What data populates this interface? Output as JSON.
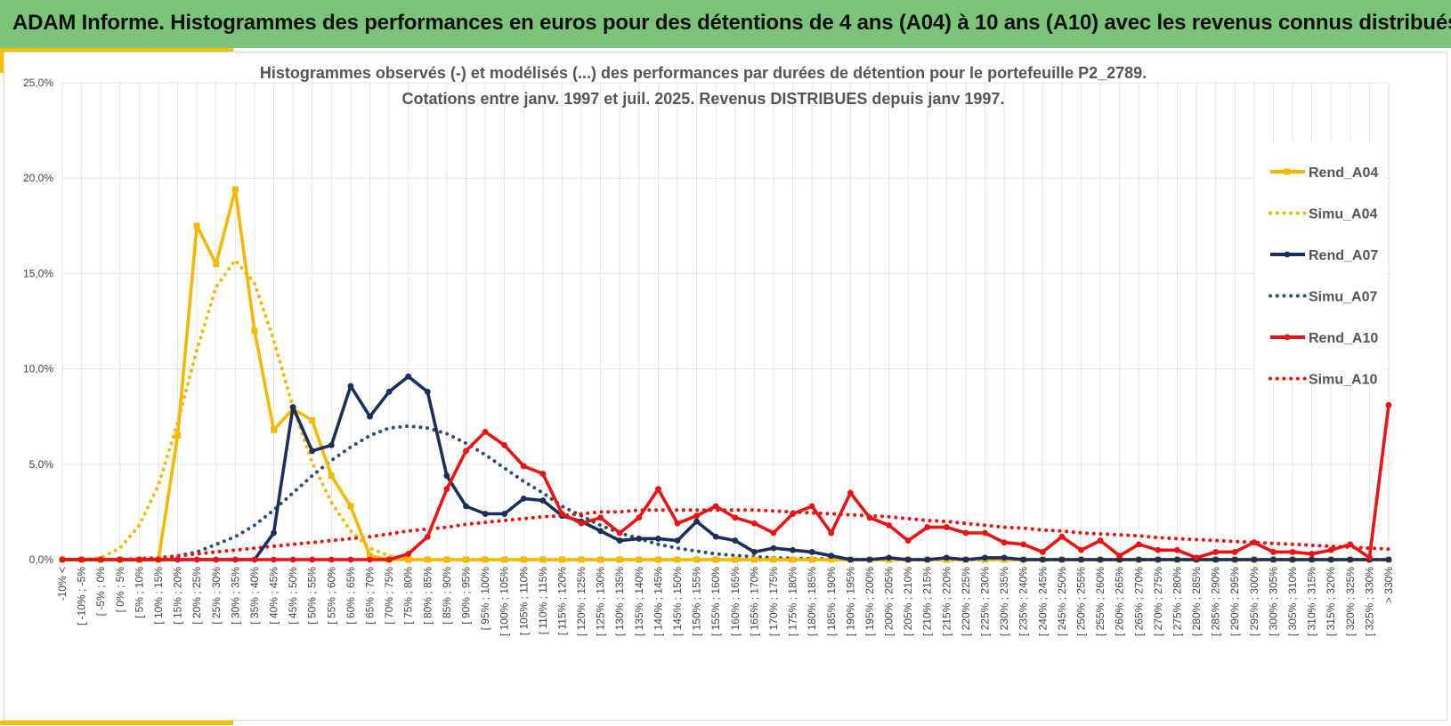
{
  "header": {
    "title": "ADAM Informe. Histogrammes des performances en euros pour des détentions de 4 ans (A04) à 10 ans (A10) avec les revenus connus distribués"
  },
  "colors": {
    "header_bg": "#7cc47a",
    "accent": "#f2c200",
    "a04": "#f5b800",
    "a07": "#1b2f5c",
    "a10": "#ee1111",
    "sim_a07": "#2f4f6f",
    "grid": "#e3e3e3",
    "axis_text": "#444444"
  },
  "chart_data": {
    "type": "line",
    "title_lines": [
      "Histogrammes observés (-) et modélisés (...) des performances par durées de détention pour le portefeuille P2_2789.",
      "Cotations entre janv. 1997 et juil. 2025. Revenus DISTRIBUES depuis janv 1997."
    ],
    "y_ticks": [
      "0,0%",
      "5,0%",
      "10,0%",
      "15,0%",
      "20,0%",
      "25,0%"
    ],
    "ylim": [
      0,
      25
    ],
    "y_unit": "%",
    "grid": true,
    "legend_position": "right",
    "categories": [
      "-10% <",
      "[ -10% ; -5%",
      "[ -5% ; 0%",
      "[ 0% ; 5%",
      "[ 5% ; 10%",
      "[ 10% ; 15%",
      "[ 15% ; 20%",
      "[ 20% ; 25%",
      "[ 25% ; 30%",
      "[ 30% ; 35%",
      "[ 35% ; 40%",
      "[ 40% ; 45%",
      "[ 45% ; 50%",
      "[ 50% ; 55%",
      "[ 55% ; 60%",
      "[ 60% ; 65%",
      "[ 65% ; 70%",
      "[ 70% ; 75%",
      "[ 75% ; 80%",
      "[ 80% ; 85%",
      "[ 85% ; 90%",
      "[ 90% ; 95%",
      "[ 95% ; 100%",
      "[ 100% ; 105%",
      "[ 105% ; 110%",
      "[ 110% ; 115%",
      "[ 115% ; 120%",
      "[ 120% ; 125%",
      "[ 125% ; 130%",
      "[ 130% ; 135%",
      "[ 135% ; 140%",
      "[ 140% ; 145%",
      "[ 145% ; 150%",
      "[ 150% ; 155%",
      "[ 155% ; 160%",
      "[ 160% ; 165%",
      "[ 165% ; 170%",
      "[ 170% ; 175%",
      "[ 175% ; 180%",
      "[ 180% ; 185%",
      "[ 185% ; 190%",
      "[ 190% ; 195%",
      "[ 195% ; 200%",
      "[ 200% ; 205%",
      "[ 205% ; 210%",
      "[ 210% ; 215%",
      "[ 215% ; 220%",
      "[ 220% ; 225%",
      "[ 225% ; 230%",
      "[ 230% ; 235%",
      "[ 235% ; 240%",
      "[ 240% ; 245%",
      "[ 245% ; 250%",
      "[ 250% ; 255%",
      "[ 255% ; 260%",
      "[ 260% ; 265%",
      "[ 265% ; 270%",
      "[ 270% ; 275%",
      "[ 275% ; 280%",
      "[ 280% ; 285%",
      "[ 285% ; 290%",
      "[ 290% ; 295%",
      "[ 295% ; 300%",
      "[ 300% ; 305%",
      "[ 305% ; 310%",
      "[ 310% ; 315%",
      "[ 315% ; 320%",
      "[ 320% ; 325%",
      "[ 325% ; 330%",
      "> 330%"
    ],
    "series": [
      {
        "name": "Rend_A04",
        "style": "solid",
        "marker": "square",
        "color": "#f5b800",
        "values": [
          0,
          0,
          0,
          0,
          0,
          0,
          6.5,
          17.5,
          15.5,
          19.4,
          12.0,
          6.8,
          7.9,
          7.3,
          4.4,
          2.8,
          0.2,
          0,
          0,
          0,
          0,
          0,
          0,
          0,
          0,
          0,
          0,
          0,
          0,
          0,
          0,
          0,
          0,
          0,
          0,
          0,
          0,
          0,
          0,
          0,
          0,
          0,
          0,
          0,
          0,
          0,
          0,
          0,
          0,
          0,
          0,
          0,
          0,
          0,
          0,
          0,
          0,
          0,
          0,
          0,
          0,
          0,
          0,
          0,
          0,
          0,
          0,
          0,
          0,
          0
        ]
      },
      {
        "name": "Simu_A04",
        "style": "dotted",
        "color": "#f5b800",
        "values": [
          0,
          0,
          0.1,
          0.6,
          1.8,
          3.9,
          7.2,
          11.0,
          14.3,
          15.7,
          14.5,
          11.5,
          8.0,
          5.1,
          3.0,
          1.5,
          0.6,
          0.2,
          0.05,
          0,
          0,
          0,
          0,
          0,
          0,
          0,
          0,
          0,
          0,
          0,
          0,
          0,
          0,
          0,
          0,
          0,
          0,
          0,
          0,
          0,
          0,
          0,
          0,
          0,
          0,
          0,
          0,
          0,
          0,
          0,
          0,
          0,
          0,
          0,
          0,
          0,
          0,
          0,
          0,
          0,
          0,
          0,
          0,
          0,
          0,
          0,
          0,
          0,
          0,
          0
        ]
      },
      {
        "name": "Rend_A07",
        "style": "solid",
        "marker": "circle",
        "color": "#1b2f5c",
        "values": [
          0,
          0,
          0,
          0,
          0,
          0,
          0,
          0,
          0,
          0,
          0,
          1.4,
          8.0,
          5.7,
          6.0,
          9.1,
          7.5,
          8.8,
          9.6,
          8.8,
          4.4,
          2.8,
          2.4,
          2.4,
          3.2,
          3.1,
          2.3,
          2.0,
          1.5,
          1.0,
          1.1,
          1.1,
          1.0,
          2.0,
          1.2,
          1.0,
          0.4,
          0.6,
          0.5,
          0.4,
          0.2,
          0,
          0,
          0.1,
          0,
          0,
          0.1,
          0,
          0.1,
          0.1,
          0,
          0,
          0,
          0,
          0,
          0,
          0,
          0,
          0,
          0,
          0,
          0,
          0,
          0,
          0,
          0,
          0,
          0,
          0,
          0
        ]
      },
      {
        "name": "Simu_A07",
        "style": "dotted",
        "color": "#2f4f6f",
        "values": [
          0,
          0,
          0,
          0,
          0,
          0.05,
          0.2,
          0.4,
          0.8,
          1.2,
          1.8,
          2.6,
          3.5,
          4.4,
          5.2,
          5.9,
          6.5,
          6.9,
          7.0,
          6.9,
          6.6,
          6.1,
          5.5,
          4.8,
          4.1,
          3.5,
          2.8,
          2.3,
          1.8,
          1.4,
          1.1,
          0.8,
          0.6,
          0.45,
          0.3,
          0.22,
          0.15,
          0.1,
          0.07,
          0.05,
          0.03,
          0.02,
          0,
          0,
          0,
          0,
          0,
          0,
          0,
          0,
          0,
          0,
          0,
          0,
          0,
          0,
          0,
          0,
          0,
          0,
          0,
          0,
          0,
          0,
          0,
          0,
          0,
          0,
          0,
          0
        ]
      },
      {
        "name": "Rend_A10",
        "style": "solid",
        "marker": "circle",
        "color": "#ee1111",
        "values": [
          0,
          0,
          0,
          0,
          0,
          0,
          0,
          0,
          0,
          0,
          0,
          0,
          0,
          0,
          0,
          0,
          0,
          0,
          0.3,
          1.2,
          3.7,
          5.7,
          6.7,
          6.0,
          4.9,
          4.5,
          2.4,
          1.9,
          2.2,
          1.4,
          2.2,
          3.7,
          1.9,
          2.3,
          2.8,
          2.2,
          1.9,
          1.4,
          2.4,
          2.8,
          1.4,
          3.5,
          2.2,
          1.8,
          1.0,
          1.7,
          1.7,
          1.4,
          1.4,
          0.9,
          0.8,
          0.4,
          1.2,
          0.5,
          1.0,
          0.2,
          0.8,
          0.5,
          0.5,
          0.1,
          0.4,
          0.4,
          0.9,
          0.4,
          0.4,
          0.3,
          0.5,
          0.8,
          0.1,
          8.1
        ]
      },
      {
        "name": "Simu_A10",
        "style": "dotted",
        "color": "#ee1111",
        "values": [
          0,
          0,
          0,
          0,
          0.05,
          0.1,
          0.2,
          0.3,
          0.4,
          0.5,
          0.6,
          0.7,
          0.8,
          0.9,
          1.0,
          1.1,
          1.2,
          1.35,
          1.5,
          1.6,
          1.7,
          1.85,
          1.95,
          2.05,
          2.15,
          2.25,
          2.3,
          2.4,
          2.5,
          2.5,
          2.6,
          2.6,
          2.6,
          2.6,
          2.6,
          2.6,
          2.6,
          2.55,
          2.5,
          2.45,
          2.4,
          2.35,
          2.3,
          2.25,
          2.15,
          2.05,
          2.0,
          1.9,
          1.8,
          1.7,
          1.65,
          1.55,
          1.5,
          1.4,
          1.35,
          1.3,
          1.25,
          1.15,
          1.1,
          1.05,
          1.0,
          0.95,
          0.9,
          0.85,
          0.8,
          0.75,
          0.7,
          0.65,
          0.6,
          0.55
        ]
      }
    ]
  }
}
